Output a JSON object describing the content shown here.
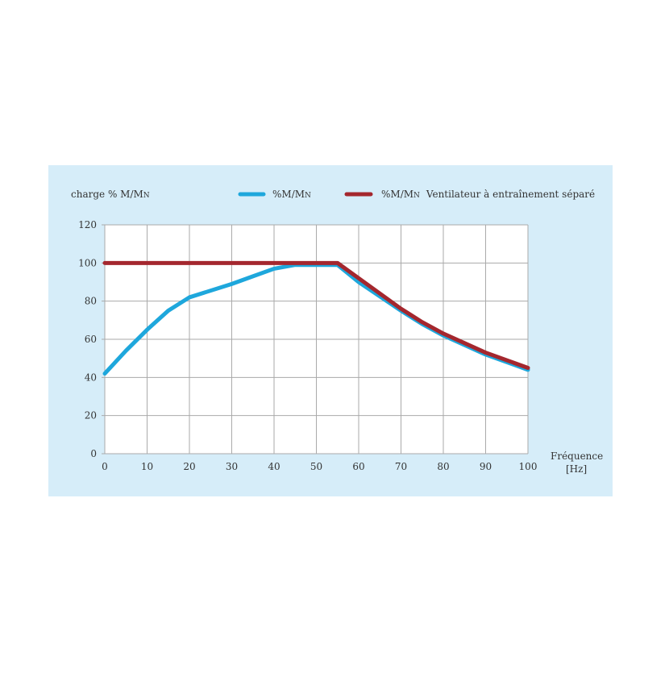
{
  "chart_data": {
    "type": "line",
    "ylabel": "charge % M/M",
    "ylabel_sub": "N",
    "xlabel": "Fréquence",
    "xunit": "[Hz]",
    "xlim": [
      0,
      100
    ],
    "ylim": [
      0,
      120
    ],
    "xticks": [
      0,
      10,
      20,
      30,
      40,
      50,
      60,
      70,
      80,
      90,
      100
    ],
    "yticks": [
      0,
      20,
      40,
      60,
      80,
      100,
      120
    ],
    "grid": true,
    "legend_position": "top",
    "series": [
      {
        "name": "%M/M",
        "name_sub": "N",
        "suffix": "",
        "color": "#1ea7dc",
        "x": [
          0,
          5,
          10,
          15,
          20,
          30,
          35,
          40,
          45,
          55,
          60,
          70,
          75,
          80,
          90,
          100
        ],
        "y": [
          42,
          54,
          65,
          75,
          82,
          89,
          93,
          97,
          99,
          99,
          90,
          75,
          68,
          62,
          52,
          44
        ]
      },
      {
        "name": "%M/M",
        "name_sub": "N",
        "suffix": "Ventilateur à entraînement séparé",
        "color": "#a4272e",
        "x": [
          0,
          55,
          60,
          70,
          75,
          80,
          90,
          100
        ],
        "y": [
          100,
          100,
          92,
          76,
          69,
          63,
          53,
          45
        ]
      }
    ]
  }
}
